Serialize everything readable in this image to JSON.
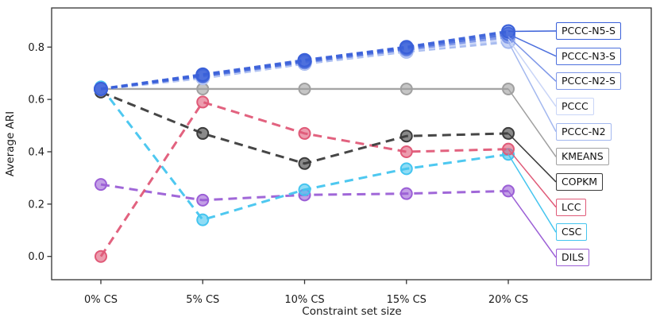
{
  "figure": {
    "background": "#ffffff",
    "axis_color": "#333333",
    "text_color": "#1a1a1a"
  },
  "chart_data": {
    "type": "line",
    "title": "",
    "xlabel": "Constraint set size",
    "ylabel": "Average ARI",
    "categories": [
      "0% CS",
      "5% CS",
      "10% CS",
      "15% CS",
      "20% CS"
    ],
    "ytick_labels": [
      "0.0",
      "0.2",
      "0.4",
      "0.6",
      "0.8"
    ],
    "ytick_values": [
      0.0,
      0.2,
      0.4,
      0.6,
      0.8
    ],
    "ylim": [
      -0.09,
      0.95
    ],
    "grid": false,
    "legend_position": "right-annotation-boxes",
    "series": [
      {
        "name": "PCCC-N5-S",
        "color": "#3a60d9",
        "linestyle": "dashed",
        "marker": "circle",
        "values": [
          0.64,
          0.695,
          0.75,
          0.8,
          0.86
        ]
      },
      {
        "name": "PCCC-N3-S",
        "color": "#4d70dd",
        "linestyle": "dashed",
        "marker": "circle",
        "values": [
          0.64,
          0.69,
          0.745,
          0.795,
          0.85
        ]
      },
      {
        "name": "PCCC-N2-S",
        "color": "#7e97e8",
        "linestyle": "dashed",
        "marker": "circle",
        "values": [
          0.64,
          0.688,
          0.742,
          0.79,
          0.84
        ]
      },
      {
        "name": "PCCC",
        "color": "#c9d5f7",
        "linestyle": "dashed",
        "marker": "circle",
        "values": [
          0.64,
          0.685,
          0.74,
          0.787,
          0.83
        ]
      },
      {
        "name": "PCCC-N2",
        "color": "#a3b8ef",
        "linestyle": "dashed",
        "marker": "circle",
        "values": [
          0.64,
          0.682,
          0.737,
          0.783,
          0.82
        ]
      },
      {
        "name": "KMEANS",
        "color": "#a0a0a0",
        "linestyle": "solid",
        "marker": "circle",
        "values": [
          0.64,
          0.64,
          0.64,
          0.64,
          0.64
        ]
      },
      {
        "name": "COPKM",
        "color": "#3c3c3c",
        "linestyle": "dashed",
        "marker": "circle",
        "values": [
          0.628,
          0.47,
          0.355,
          0.46,
          0.47
        ]
      },
      {
        "name": "LCC",
        "color": "#e05a78",
        "linestyle": "dashed",
        "marker": "circle",
        "values": [
          0.0,
          0.59,
          0.47,
          0.4,
          0.41
        ]
      },
      {
        "name": "CSC",
        "color": "#45c5ef",
        "linestyle": "dashed",
        "marker": "circle",
        "values": [
          0.648,
          0.14,
          0.255,
          0.335,
          0.39
        ]
      },
      {
        "name": "DILS",
        "color": "#9b5fd6",
        "linestyle": "dashed",
        "marker": "circle",
        "values": [
          0.275,
          0.215,
          0.235,
          0.24,
          0.25
        ]
      }
    ]
  }
}
